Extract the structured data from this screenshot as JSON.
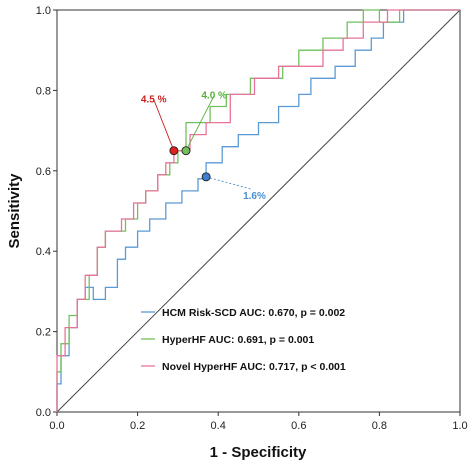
{
  "chart_data": {
    "type": "line",
    "xlabel": "1 - Specificity",
    "ylabel": "Sensitivity",
    "xlim": [
      0,
      1
    ],
    "ylim": [
      0,
      1
    ],
    "x_ticks": [
      "0.0",
      "0.2",
      "0.4",
      "0.6",
      "0.8",
      "1.0"
    ],
    "y_ticks": [
      "0.0",
      "0.2",
      "0.4",
      "0.6",
      "0.8",
      "1.0"
    ],
    "grid": false,
    "legend_position": "bottom-center",
    "series": [
      {
        "name": "HCM Risk-SCD AUC: 0.670, p = 0.002",
        "color": "#5b9bd5",
        "x": [
          0,
          0,
          0.01,
          0.01,
          0.03,
          0.03,
          0.05,
          0.05,
          0.07,
          0.07,
          0.09,
          0.09,
          0.12,
          0.12,
          0.15,
          0.15,
          0.17,
          0.17,
          0.2,
          0.2,
          0.23,
          0.23,
          0.27,
          0.27,
          0.31,
          0.31,
          0.35,
          0.35,
          0.37,
          0.37,
          0.41,
          0.41,
          0.45,
          0.45,
          0.5,
          0.5,
          0.55,
          0.55,
          0.6,
          0.6,
          0.63,
          0.63,
          0.69,
          0.69,
          0.74,
          0.74,
          0.78,
          0.78,
          0.81,
          0.81,
          0.86,
          0.86,
          1.0
        ],
        "y": [
          0,
          0.07,
          0.07,
          0.14,
          0.14,
          0.21,
          0.21,
          0.28,
          0.28,
          0.31,
          0.31,
          0.28,
          0.28,
          0.31,
          0.31,
          0.38,
          0.38,
          0.41,
          0.41,
          0.45,
          0.45,
          0.48,
          0.48,
          0.52,
          0.52,
          0.55,
          0.55,
          0.58,
          0.58,
          0.62,
          0.62,
          0.66,
          0.66,
          0.69,
          0.69,
          0.72,
          0.72,
          0.76,
          0.76,
          0.79,
          0.79,
          0.83,
          0.83,
          0.86,
          0.86,
          0.9,
          0.9,
          0.93,
          0.93,
          0.97,
          0.97,
          1.0,
          1.0
        ]
      },
      {
        "name": "HyperHF AUC: 0.691, p = 0.001",
        "color": "#70c25a",
        "x": [
          0,
          0,
          0.01,
          0.01,
          0.03,
          0.03,
          0.05,
          0.05,
          0.08,
          0.08,
          0.1,
          0.1,
          0.12,
          0.12,
          0.17,
          0.17,
          0.2,
          0.2,
          0.22,
          0.22,
          0.25,
          0.25,
          0.28,
          0.28,
          0.3,
          0.3,
          0.32,
          0.32,
          0.38,
          0.38,
          0.42,
          0.42,
          0.48,
          0.48,
          0.56,
          0.56,
          0.6,
          0.6,
          0.66,
          0.66,
          0.72,
          0.72,
          0.76,
          0.76,
          0.8,
          0.8,
          0.85,
          0.85,
          1.0
        ],
        "y": [
          0,
          0.1,
          0.1,
          0.17,
          0.17,
          0.24,
          0.24,
          0.28,
          0.28,
          0.34,
          0.34,
          0.41,
          0.41,
          0.45,
          0.45,
          0.48,
          0.48,
          0.52,
          0.52,
          0.55,
          0.55,
          0.59,
          0.59,
          0.62,
          0.62,
          0.65,
          0.65,
          0.72,
          0.72,
          0.76,
          0.76,
          0.79,
          0.79,
          0.83,
          0.83,
          0.86,
          0.86,
          0.9,
          0.9,
          0.93,
          0.93,
          0.97,
          0.97,
          1.0,
          1.0,
          0.97,
          0.97,
          1.0,
          1.0
        ]
      },
      {
        "name": "Novel HyperHF AUC: 0.717, p < 0.001",
        "color": "#e8739a",
        "x": [
          0,
          0,
          0.02,
          0.02,
          0.05,
          0.05,
          0.07,
          0.07,
          0.1,
          0.1,
          0.12,
          0.12,
          0.16,
          0.16,
          0.19,
          0.19,
          0.22,
          0.22,
          0.25,
          0.25,
          0.27,
          0.27,
          0.29,
          0.29,
          0.33,
          0.33,
          0.37,
          0.37,
          0.43,
          0.43,
          0.49,
          0.49,
          0.55,
          0.55,
          0.61,
          0.61,
          0.66,
          0.66,
          0.71,
          0.71,
          0.76,
          0.76,
          0.82,
          0.82,
          1.0
        ],
        "y": [
          0,
          0.14,
          0.14,
          0.21,
          0.21,
          0.28,
          0.28,
          0.34,
          0.34,
          0.41,
          0.41,
          0.45,
          0.45,
          0.48,
          0.48,
          0.52,
          0.52,
          0.55,
          0.55,
          0.59,
          0.59,
          0.62,
          0.62,
          0.65,
          0.65,
          0.69,
          0.69,
          0.72,
          0.72,
          0.79,
          0.79,
          0.83,
          0.83,
          0.86,
          0.86,
          0.86,
          0.86,
          0.9,
          0.9,
          0.93,
          0.93,
          0.97,
          0.97,
          1.0,
          1.0
        ]
      }
    ],
    "annotations": [
      {
        "text": "4.5 %",
        "color": "#cc1f1f",
        "point": [
          0.29,
          0.65
        ],
        "fill": "#e02020",
        "label_at": [
          0.24,
          0.77
        ]
      },
      {
        "text": "4.0 %",
        "color": "#55b03a",
        "point": [
          0.32,
          0.65
        ],
        "fill": "#70c25a",
        "label_at": [
          0.39,
          0.78
        ]
      },
      {
        "text": "1.6%",
        "color": "#4a8fd4",
        "point": [
          0.37,
          0.585
        ],
        "fill": "#3f7fd0",
        "label_at": [
          0.49,
          0.53
        ]
      }
    ]
  }
}
